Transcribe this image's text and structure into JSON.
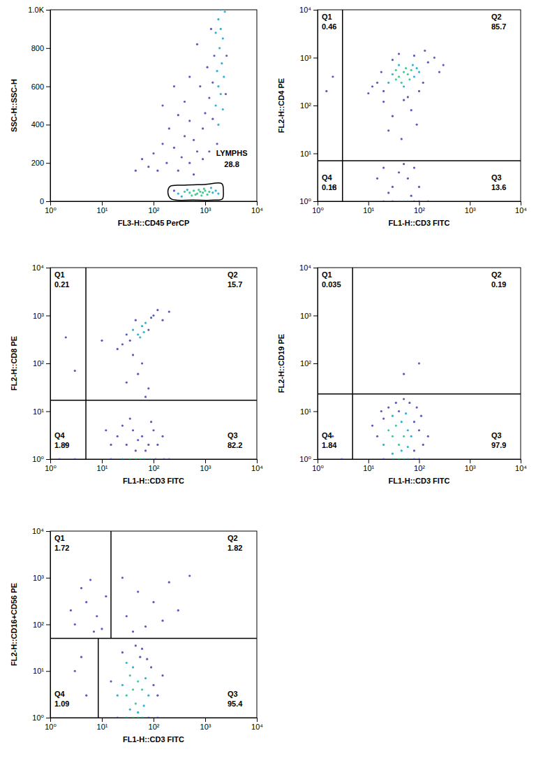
{
  "chart_data": [
    {
      "type": "scatter",
      "x_label": "FL3-H::CD45 PerCP",
      "y_label": "SSC-H::SSC-H",
      "log": "x",
      "xlim": [
        1,
        10000
      ],
      "ylim": [
        0,
        1000
      ],
      "xticks": [
        {
          "value": 1,
          "label": "10⁰"
        },
        {
          "value": 10,
          "label": "10¹"
        },
        {
          "value": 100,
          "label": "10²"
        },
        {
          "value": 1000,
          "label": "10³"
        },
        {
          "value": 10000,
          "label": "10⁴"
        }
      ],
      "yticks": [
        0,
        200,
        400,
        600,
        800,
        {
          "value": 1000,
          "label": "1.0K"
        }
      ],
      "x": [
        1800,
        2000,
        1600,
        2200,
        1900,
        1500,
        2100,
        1700,
        2300,
        1400,
        1800,
        2000,
        1200,
        1600,
        2200,
        1000,
        1400,
        1800,
        900,
        2400,
        2000,
        2600,
        1100,
        800,
        700,
        1300,
        2500,
        1700,
        1200,
        300,
        500,
        200,
        400,
        600,
        150,
        250,
        700,
        100,
        350,
        60,
        80,
        45,
        500,
        180,
        120,
        900,
        300,
        600,
        400,
        250,
        500,
        150,
        300,
        400,
        500,
        600,
        700,
        800,
        900,
        1000,
        1200,
        550,
        650,
        750,
        850,
        450,
        1100,
        1400,
        1600,
        250,
        350,
        950,
        1300,
        1800
      ],
      "values": [
        950,
        900,
        880,
        850,
        800,
        760,
        720,
        680,
        650,
        620,
        600,
        560,
        540,
        500,
        480,
        460,
        430,
        400,
        380,
        990,
        1000,
        760,
        700,
        600,
        820,
        900,
        560,
        300,
        260,
        450,
        420,
        380,
        340,
        320,
        300,
        280,
        260,
        250,
        230,
        220,
        180,
        160,
        200,
        200,
        160,
        220,
        160,
        140,
        520,
        600,
        650,
        500,
        40,
        50,
        45,
        55,
        40,
        50,
        45,
        55,
        50,
        30,
        35,
        60,
        30,
        60,
        35,
        45,
        55,
        55,
        25,
        65,
        70,
        40
      ],
      "colors": [
        "#2fb3d6",
        "#2fb3d6",
        "#2fb3d6",
        "#2fb3d6",
        "#2fb3d6",
        "#5b5bbf",
        "#2fb3d6",
        "#2fb3d6",
        "#2fb3d6",
        "#5b5bbf",
        "#2fb3d6",
        "#2fb3d6",
        "#5b5bbf",
        "#2fb3d6",
        "#2fb3d6",
        "#5b5bbf",
        "#5b5bbf",
        "#2fb3d6",
        "#5b5bbf",
        "#2fb3d6",
        "#2fb3d6",
        "#5b5bbf",
        "#5b5bbf",
        "#5b5bbf",
        "#5b5bbf",
        "#5b5bbf",
        "#5b5bbf",
        "#5b5bbf",
        "#5b5bbf",
        "#5b5bbf",
        "#5b5bbf",
        "#5b5bbf",
        "#5b5bbf",
        "#5b5bbf",
        "#5b5bbf",
        "#5b5bbf",
        "#5b5bbf",
        "#5b5bbf",
        "#5b5bbf",
        "#5b5bbf",
        "#5b5bbf",
        "#5b5bbf",
        "#5b5bbf",
        "#5b5bbf",
        "#5b5bbf",
        "#5b5bbf",
        "#5b5bbf",
        "#5b5bbf",
        "#5b5bbf",
        "#5b5bbf",
        "#5b5bbf",
        "#5b5bbf",
        "#2fb3d6",
        "#3fcf8e",
        "#3fcf8e",
        "#3fcf8e",
        "#3fcf8e",
        "#3fcf8e",
        "#3fcf8e",
        "#3fcf8e",
        "#3fcf8e",
        "#3fcf8e",
        "#3fcf8e",
        "#3fcf8e",
        "#3fcf8e",
        "#2fb3d6",
        "#3fcf8e",
        "#2fb3d6",
        "#2fb3d6",
        "#5b5bbf",
        "#2fb3d6",
        "#3fcf8e",
        "#2fb3d6",
        "#2fb3d6"
      ],
      "gate": {
        "label": "LYMPHS",
        "percent": 28.8,
        "x": [
          190,
          220,
          600,
          1500,
          2150,
          2250,
          2100,
          1000,
          400,
          210
        ],
        "y": [
          45,
          12,
          6,
          6,
          12,
          50,
          92,
          88,
          84,
          78
        ]
      }
    },
    {
      "type": "scatter",
      "x_label": "FL1-H::CD3 FITC",
      "y_label": "FL2-H::CD4 PE",
      "log": true,
      "xlim": [
        1,
        10000
      ],
      "ylim": [
        1,
        10000
      ],
      "xticks": [
        {
          "value": 1,
          "label": "10⁰"
        },
        {
          "value": 10,
          "label": "10¹"
        },
        {
          "value": 100,
          "label": "10²"
        },
        {
          "value": 1000,
          "label": "10³"
        },
        {
          "value": 10000,
          "label": "10⁴"
        }
      ],
      "yticks": [
        {
          "value": 1,
          "label": "10⁰"
        },
        {
          "value": 10,
          "label": "10¹"
        },
        {
          "value": 100,
          "label": "10²"
        },
        {
          "value": 1000,
          "label": "10³"
        },
        {
          "value": 10000,
          "label": "10⁴"
        }
      ],
      "x": [
        40,
        50,
        35,
        60,
        45,
        55,
        70,
        30,
        80,
        40,
        65,
        50,
        90,
        25,
        100,
        35,
        75,
        20,
        15,
        120,
        150,
        200,
        30,
        12,
        100,
        60,
        20,
        250,
        40,
        80,
        18,
        130,
        300,
        10,
        50,
        70,
        30,
        90,
        25,
        45,
        2,
        1.5,
        20,
        40,
        60,
        30,
        80,
        15,
        100,
        50,
        25,
        70,
        20,
        40,
        60,
        80,
        100,
        30,
        50,
        150,
        2
      ],
      "values": [
        400,
        500,
        350,
        450,
        300,
        600,
        550,
        450,
        400,
        700,
        350,
        250,
        600,
        300,
        500,
        550,
        700,
        200,
        300,
        300,
        800,
        1000,
        900,
        250,
        200,
        150,
        120,
        500,
        1200,
        1100,
        500,
        1400,
        700,
        180,
        130,
        80,
        60,
        40,
        30,
        20,
        400,
        200,
        5,
        4,
        3,
        2,
        5,
        3,
        2,
        6,
        1.5,
        1.3,
        1,
        1,
        1,
        1,
        1,
        1,
        1,
        1,
        2
      ],
      "colors": [
        "#3fcf8e",
        "#3fcf8e",
        "#3fcf8e",
        "#3fcf8e",
        "#3fcf8e",
        "#3fcf8e",
        "#3fcf8e",
        "#2fb3d6",
        "#2fb3d6",
        "#2fb3d6",
        "#3fcf8e",
        "#2fb3d6",
        "#2fb3d6",
        "#2fb3d6",
        "#2fb3d6",
        "#3fcf8e",
        "#2fb3d6",
        "#5b5bbf",
        "#5b5bbf",
        "#5b5bbf",
        "#5b5bbf",
        "#5b5bbf",
        "#5b5bbf",
        "#5b5bbf",
        "#5b5bbf",
        "#5b5bbf",
        "#5b5bbf",
        "#5b5bbf",
        "#5b5bbf",
        "#5b5bbf",
        "#5b5bbf",
        "#5b5bbf",
        "#5b5bbf",
        "#5b5bbf",
        "#5b5bbf",
        "#5b5bbf",
        "#5b5bbf",
        "#5b5bbf",
        "#5b5bbf",
        "#5b5bbf",
        "#5b5bbf",
        "#5b5bbf",
        "#5b5bbf",
        "#5b5bbf",
        "#5b5bbf",
        "#5b5bbf",
        "#5b5bbf",
        "#5b5bbf",
        "#5b5bbf",
        "#5b5bbf",
        "#5b5bbf",
        "#5b5bbf",
        "#5b5bbf",
        "#2fb3d6",
        "#2fb3d6",
        "#5b5bbf",
        "#5b5bbf",
        "#5b5bbf",
        "#2fb3d6",
        "#5b5bbf",
        "#5b5bbf"
      ],
      "quadrants": {
        "labels": [
          "Q1",
          "Q2",
          "Q3",
          "Q4"
        ],
        "values": [
          0.46,
          85.7,
          13.6,
          0.18
        ],
        "x_top": 3.1,
        "x_bottom": 3.1,
        "y": 7
      }
    },
    {
      "type": "scatter",
      "x_label": "FL1-H::CD3 FITC",
      "y_label": "FL2-H::CD8 PE",
      "log": true,
      "xlim": [
        1,
        10000
      ],
      "ylim": [
        1,
        10000
      ],
      "xticks": [
        {
          "value": 1,
          "label": "10⁰"
        },
        {
          "value": 10,
          "label": "10¹"
        },
        {
          "value": 100,
          "label": "10²"
        },
        {
          "value": 1000,
          "label": "10³"
        },
        {
          "value": 10000,
          "label": "10⁴"
        }
      ],
      "yticks": [
        {
          "value": 1,
          "label": "10⁰"
        },
        {
          "value": 10,
          "label": "10¹"
        },
        {
          "value": 100,
          "label": "10²"
        },
        {
          "value": 1000,
          "label": "10³"
        },
        {
          "value": 10000,
          "label": "10⁴"
        }
      ],
      "x": [
        40,
        50,
        60,
        35,
        70,
        45,
        80,
        30,
        55,
        90,
        100,
        25,
        65,
        120,
        20,
        150,
        40,
        60,
        50,
        30,
        80,
        70,
        200,
        10,
        2,
        3,
        20,
        30,
        40,
        50,
        60,
        80,
        100,
        15,
        25,
        45,
        70,
        35,
        90,
        120,
        150,
        12,
        15,
        25,
        35,
        45,
        55,
        65,
        85,
        110,
        160,
        200,
        2,
        1.5,
        3
      ],
      "values": [
        500,
        400,
        600,
        300,
        700,
        800,
        500,
        400,
        350,
        900,
        1000,
        250,
        450,
        1300,
        200,
        800,
        150,
        100,
        60,
        40,
        30,
        20,
        1200,
        300,
        350,
        70,
        3,
        2,
        4,
        2.5,
        3,
        2,
        4,
        2,
        5,
        1.5,
        1.5,
        7,
        6,
        2,
        3,
        4,
        1,
        1,
        1,
        1,
        1,
        1,
        1,
        1,
        1,
        1,
        2,
        1,
        1
      ],
      "colors": [
        "#2fb3d6",
        "#2fb3d6",
        "#2fb3d6",
        "#5b5bbf",
        "#2fb3d6",
        "#5b5bbf",
        "#5b5bbf",
        "#5b5bbf",
        "#2fb3d6",
        "#5b5bbf",
        "#5b5bbf",
        "#5b5bbf",
        "#2fb3d6",
        "#5b5bbf",
        "#5b5bbf",
        "#5b5bbf",
        "#5b5bbf",
        "#5b5bbf",
        "#5b5bbf",
        "#5b5bbf",
        "#5b5bbf",
        "#5b5bbf",
        "#5b5bbf",
        "#5b5bbf",
        "#5b5bbf",
        "#5b5bbf",
        "#5b5bbf",
        "#5b5bbf",
        "#5b5bbf",
        "#5b5bbf",
        "#5b5bbf",
        "#5b5bbf",
        "#5b5bbf",
        "#5b5bbf",
        "#5b5bbf",
        "#5b5bbf",
        "#5b5bbf",
        "#5b5bbf",
        "#5b5bbf",
        "#5b5bbf",
        "#5b5bbf",
        "#5b5bbf",
        "#5b5bbf",
        "#2fb3d6",
        "#3fcf8e",
        "#3fcf8e",
        "#3fcf8e",
        "#2fb3d6",
        "#2fb3d6",
        "#5b5bbf",
        "#5b5bbf",
        "#5b5bbf",
        "#5b5bbf",
        "#5b5bbf",
        "#5b5bbf"
      ],
      "quadrants": {
        "labels": [
          "Q1",
          "Q2",
          "Q3",
          "Q4"
        ],
        "values": [
          0.21,
          15.7,
          82.2,
          1.89
        ],
        "x_top": 4.9,
        "x_bottom": 4.9,
        "y": 17
      }
    },
    {
      "type": "scatter",
      "x_label": "FL1-H::CD3 FITC",
      "y_label": "FL2-H::CD19 PE",
      "log": true,
      "xlim": [
        1,
        10000
      ],
      "ylim": [
        1,
        10000
      ],
      "xticks": [
        {
          "value": 1,
          "label": "10⁰"
        },
        {
          "value": 10,
          "label": "10¹"
        },
        {
          "value": 100,
          "label": "10²"
        },
        {
          "value": 1000,
          "label": "10³"
        },
        {
          "value": 10000,
          "label": "10⁴"
        }
      ],
      "yticks": [
        {
          "value": 1,
          "label": "10⁰"
        },
        {
          "value": 10,
          "label": "10¹"
        },
        {
          "value": 100,
          "label": "10²"
        },
        {
          "value": 1000,
          "label": "10³"
        },
        {
          "value": 10000,
          "label": "10⁴"
        }
      ],
      "x": [
        30,
        40,
        25,
        35,
        50,
        20,
        45,
        60,
        30,
        40,
        70,
        80,
        15,
        25,
        55,
        100,
        120,
        90,
        20,
        35,
        65,
        12,
        150,
        45,
        30,
        60,
        80,
        110,
        18,
        50,
        20,
        30,
        40,
        50,
        60,
        80,
        100,
        50,
        100,
        2,
        3
      ],
      "values": [
        3,
        2,
        4,
        5,
        3,
        2,
        6,
        4,
        8,
        10,
        3,
        6,
        3,
        12,
        9,
        4,
        2,
        12,
        7,
        15,
        15,
        5,
        3,
        1.5,
        1.3,
        1.8,
        1.5,
        8,
        10,
        18,
        1,
        1,
        1,
        1,
        1,
        1,
        1,
        60,
        100,
        3,
        1
      ],
      "colors": [
        "#3fcf8e",
        "#3fcf8e",
        "#3fcf8e",
        "#3fcf8e",
        "#3fcf8e",
        "#2fb3d6",
        "#2fb3d6",
        "#2fb3d6",
        "#2fb3d6",
        "#5b5bbf",
        "#2fb3d6",
        "#5b5bbf",
        "#5b5bbf",
        "#5b5bbf",
        "#2fb3d6",
        "#5b5bbf",
        "#5b5bbf",
        "#5b5bbf",
        "#5b5bbf",
        "#5b5bbf",
        "#5b5bbf",
        "#5b5bbf",
        "#5b5bbf",
        "#2fb3d6",
        "#2fb3d6",
        "#2fb3d6",
        "#5b5bbf",
        "#5b5bbf",
        "#5b5bbf",
        "#5b5bbf",
        "#5b5bbf",
        "#2fb3d6",
        "#3fcf8e",
        "#3fcf8e",
        "#2fb3d6",
        "#5b5bbf",
        "#5b5bbf",
        "#5b5bbf",
        "#5b5bbf",
        "#5b5bbf",
        "#5b5bbf"
      ],
      "quadrants": {
        "labels": [
          "Q1",
          "Q2",
          "Q3",
          "Q4"
        ],
        "values": [
          0.035,
          0.19,
          97.9,
          1.84
        ],
        "x_top": 4.9,
        "x_bottom": 4.9,
        "y": 23
      }
    },
    {
      "type": "scatter",
      "x_label": "FL1-H::CD3 FITC",
      "y_label": "FL2-H::CD16+CD56 PE",
      "log": true,
      "xlim": [
        1,
        10000
      ],
      "ylim": [
        1,
        10000
      ],
      "xticks": [
        {
          "value": 1,
          "label": "10⁰"
        },
        {
          "value": 10,
          "label": "10¹"
        },
        {
          "value": 100,
          "label": "10²"
        },
        {
          "value": 1000,
          "label": "10³"
        },
        {
          "value": 10000,
          "label": "10⁴"
        }
      ],
      "yticks": [
        {
          "value": 1,
          "label": "10⁰"
        },
        {
          "value": 10,
          "label": "10¹"
        },
        {
          "value": 100,
          "label": "10²"
        },
        {
          "value": 1000,
          "label": "10³"
        },
        {
          "value": 10000,
          "label": "10⁴"
        }
      ],
      "x": [
        40,
        30,
        50,
        35,
        45,
        60,
        25,
        70,
        40,
        30,
        55,
        80,
        20,
        100,
        90,
        25,
        60,
        15,
        120,
        150,
        35,
        50,
        65,
        45,
        75,
        20,
        30,
        40,
        50,
        60,
        80,
        120,
        3,
        5,
        8,
        4,
        10,
        6,
        2.5,
        12,
        7,
        30,
        50,
        100,
        200,
        25,
        70,
        300,
        150,
        500,
        40,
        3,
        5,
        4
      ],
      "values": [
        4,
        3,
        6,
        8,
        2,
        4,
        5,
        7,
        12,
        15,
        20,
        3,
        3,
        5,
        12,
        25,
        30,
        6,
        3,
        8,
        1.5,
        1.3,
        1.8,
        35,
        18,
        1,
        1,
        1,
        1,
        1,
        1,
        1,
        100,
        300,
        150,
        600,
        80,
        900,
        200,
        400,
        70,
        150,
        500,
        300,
        800,
        1000,
        90,
        200,
        120,
        1100,
        70,
        10,
        3,
        20
      ],
      "colors": [
        "#3fcf8e",
        "#3fcf8e",
        "#3fcf8e",
        "#3fcf8e",
        "#3fcf8e",
        "#3fcf8e",
        "#2fb3d6",
        "#2fb3d6",
        "#2fb3d6",
        "#2fb3d6",
        "#5b5bbf",
        "#2fb3d6",
        "#2fb3d6",
        "#5b5bbf",
        "#5b5bbf",
        "#5b5bbf",
        "#5b5bbf",
        "#5b5bbf",
        "#5b5bbf",
        "#5b5bbf",
        "#2fb3d6",
        "#2fb3d6",
        "#2fb3d6",
        "#5b5bbf",
        "#5b5bbf",
        "#5b5bbf",
        "#2fb3d6",
        "#3fcf8e",
        "#3fcf8e",
        "#2fb3d6",
        "#5b5bbf",
        "#5b5bbf",
        "#5b5bbf",
        "#5b5bbf",
        "#5b5bbf",
        "#5b5bbf",
        "#5b5bbf",
        "#5b5bbf",
        "#5b5bbf",
        "#5b5bbf",
        "#5b5bbf",
        "#5b5bbf",
        "#5b5bbf",
        "#5b5bbf",
        "#5b5bbf",
        "#5b5bbf",
        "#5b5bbf",
        "#5b5bbf",
        "#5b5bbf",
        "#5b5bbf",
        "#5b5bbf",
        "#5b5bbf",
        "#5b5bbf",
        "#5b5bbf"
      ],
      "quadrants": {
        "labels": [
          "Q1",
          "Q2",
          "Q3",
          "Q4"
        ],
        "values": [
          1.72,
          1.82,
          95.4,
          1.09
        ],
        "x_top": 15,
        "x_bottom": 8.5,
        "y": 50
      }
    }
  ]
}
